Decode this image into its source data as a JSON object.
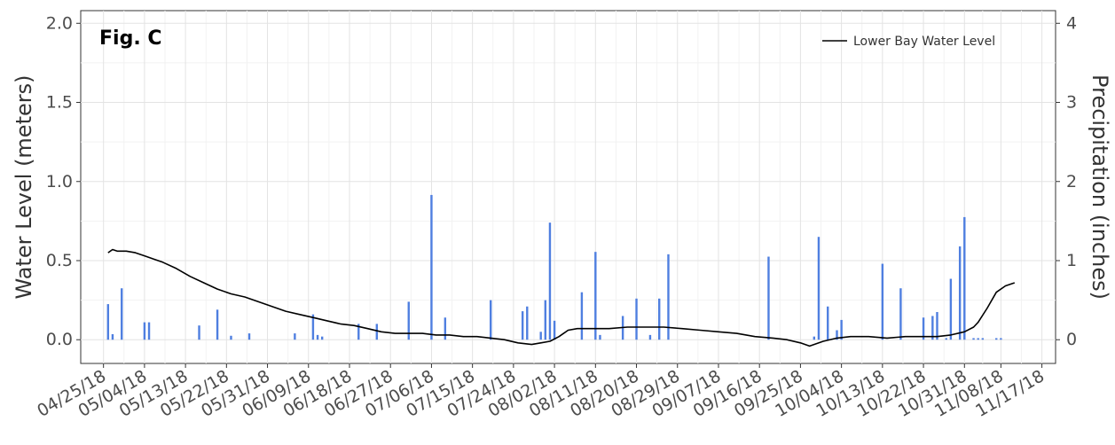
{
  "chart_data": {
    "type": "line+bar",
    "figure_label": "Fig. C",
    "xlabel": "",
    "ylabel_left": "Water Level (meters)",
    "ylabel_right": "Precipitation (inches)",
    "ylim_left": [
      -0.15,
      2.08
    ],
    "ylim_right": [
      -0.3,
      4.16
    ],
    "xlim": [
      "2018-04-20",
      "2018-11-20"
    ],
    "yticks_left": [
      0.0,
      0.5,
      1.0,
      1.5,
      2.0
    ],
    "ytick_labels_left": [
      "0.0",
      "0.5",
      "1.0",
      "1.5",
      "2.0"
    ],
    "yticks_right": [
      0,
      1,
      2,
      3,
      4
    ],
    "ytick_labels_right": [
      "0",
      "1",
      "2",
      "3",
      "4"
    ],
    "xticks": [
      "2018-04-25",
      "2018-05-04",
      "2018-05-13",
      "2018-05-22",
      "2018-05-31",
      "2018-06-09",
      "2018-06-18",
      "2018-06-27",
      "2018-07-06",
      "2018-07-15",
      "2018-07-24",
      "2018-08-02",
      "2018-08-11",
      "2018-08-20",
      "2018-08-29",
      "2018-09-07",
      "2018-09-16",
      "2018-09-25",
      "2018-10-04",
      "2018-10-13",
      "2018-10-22",
      "2018-10-31",
      "2018-11-08",
      "2018-11-17"
    ],
    "xtick_labels": [
      "04/25/18",
      "05/04/18",
      "05/13/18",
      "05/22/18",
      "05/31/18",
      "06/09/18",
      "06/18/18",
      "06/27/18",
      "07/06/18",
      "07/15/18",
      "07/24/18",
      "08/02/18",
      "08/11/18",
      "08/20/18",
      "08/29/18",
      "09/07/18",
      "09/16/18",
      "09/25/18",
      "10/04/18",
      "10/13/18",
      "10/22/18",
      "10/31/18",
      "11/08/18",
      "11/17/18"
    ],
    "grid": true,
    "legend_position": "top-right",
    "series": [
      {
        "name": "Lower Bay Water Level",
        "kind": "line",
        "axis": "left",
        "color": "#000000",
        "x": [
          "2018-04-26",
          "2018-04-27",
          "2018-04-28",
          "2018-04-30",
          "2018-05-02",
          "2018-05-04",
          "2018-05-06",
          "2018-05-08",
          "2018-05-11",
          "2018-05-14",
          "2018-05-17",
          "2018-05-20",
          "2018-05-23",
          "2018-05-26",
          "2018-05-29",
          "2018-06-01",
          "2018-06-04",
          "2018-06-07",
          "2018-06-10",
          "2018-06-13",
          "2018-06-16",
          "2018-06-19",
          "2018-06-22",
          "2018-06-25",
          "2018-06-28",
          "2018-07-01",
          "2018-07-04",
          "2018-07-07",
          "2018-07-10",
          "2018-07-13",
          "2018-07-16",
          "2018-07-19",
          "2018-07-22",
          "2018-07-25",
          "2018-07-28",
          "2018-07-30",
          "2018-08-01",
          "2018-08-03",
          "2018-08-05",
          "2018-08-07",
          "2018-08-10",
          "2018-08-14",
          "2018-08-18",
          "2018-08-22",
          "2018-08-26",
          "2018-08-30",
          "2018-09-03",
          "2018-09-07",
          "2018-09-11",
          "2018-09-15",
          "2018-09-19",
          "2018-09-22",
          "2018-09-25",
          "2018-09-27",
          "2018-09-30",
          "2018-10-03",
          "2018-10-06",
          "2018-10-10",
          "2018-10-14",
          "2018-10-18",
          "2018-10-22",
          "2018-10-25",
          "2018-10-28",
          "2018-10-31",
          "2018-11-02",
          "2018-11-03",
          "2018-11-05",
          "2018-11-07",
          "2018-11-09",
          "2018-11-11"
        ],
        "values": [
          0.55,
          0.57,
          0.56,
          0.56,
          0.55,
          0.53,
          0.51,
          0.49,
          0.45,
          0.4,
          0.36,
          0.32,
          0.29,
          0.27,
          0.24,
          0.21,
          0.18,
          0.16,
          0.14,
          0.12,
          0.1,
          0.09,
          0.07,
          0.05,
          0.04,
          0.04,
          0.04,
          0.03,
          0.03,
          0.02,
          0.02,
          0.01,
          0.0,
          -0.02,
          -0.03,
          -0.02,
          -0.01,
          0.02,
          0.06,
          0.07,
          0.07,
          0.07,
          0.08,
          0.08,
          0.08,
          0.07,
          0.06,
          0.05,
          0.04,
          0.02,
          0.01,
          0.0,
          -0.02,
          -0.04,
          -0.01,
          0.01,
          0.02,
          0.02,
          0.01,
          0.02,
          0.02,
          0.02,
          0.03,
          0.05,
          0.08,
          0.11,
          0.2,
          0.3,
          0.34,
          0.36
        ]
      },
      {
        "name": "",
        "kind": "bar",
        "axis": "right",
        "color": "#4f7fe0",
        "x": [
          "2018-04-26",
          "2018-04-27",
          "2018-04-29",
          "2018-05-04",
          "2018-05-05",
          "2018-05-16",
          "2018-05-20",
          "2018-05-23",
          "2018-05-27",
          "2018-06-06",
          "2018-06-10",
          "2018-06-11",
          "2018-06-12",
          "2018-06-20",
          "2018-06-24",
          "2018-07-01",
          "2018-07-06",
          "2018-07-09",
          "2018-07-19",
          "2018-07-26",
          "2018-07-27",
          "2018-07-30",
          "2018-07-31",
          "2018-08-01",
          "2018-08-02",
          "2018-08-08",
          "2018-08-11",
          "2018-08-12",
          "2018-08-17",
          "2018-08-20",
          "2018-08-23",
          "2018-08-25",
          "2018-08-27",
          "2018-09-18",
          "2018-09-28",
          "2018-09-29",
          "2018-10-01",
          "2018-10-03",
          "2018-10-04",
          "2018-10-13",
          "2018-10-17",
          "2018-10-22",
          "2018-10-24",
          "2018-10-25",
          "2018-10-27",
          "2018-10-28",
          "2018-10-30",
          "2018-10-31",
          "2018-11-02",
          "2018-11-03",
          "2018-11-04",
          "2018-11-07",
          "2018-11-08"
        ],
        "values": [
          0.45,
          0.07,
          0.65,
          0.22,
          0.22,
          0.18,
          0.38,
          0.05,
          0.08,
          0.08,
          0.32,
          0.06,
          0.04,
          0.2,
          0.2,
          0.48,
          1.83,
          0.28,
          0.5,
          0.36,
          0.42,
          0.1,
          0.5,
          1.48,
          0.24,
          0.6,
          1.11,
          0.06,
          0.3,
          0.52,
          0.06,
          0.52,
          1.08,
          1.05,
          0.04,
          1.3,
          0.42,
          0.12,
          0.25,
          0.96,
          0.65,
          0.28,
          0.3,
          0.35,
          0.02,
          0.77,
          1.18,
          1.55,
          0.02,
          0.02,
          0.02,
          0.02,
          0.02
        ]
      }
    ]
  }
}
